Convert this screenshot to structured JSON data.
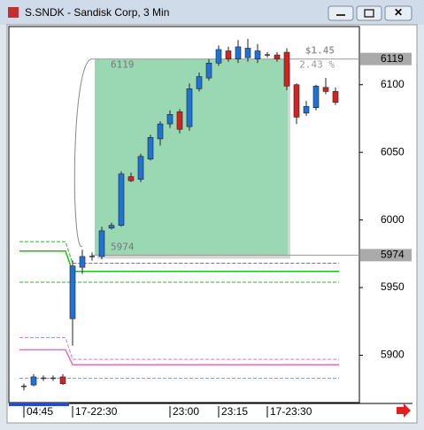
{
  "chart_data": {
    "type": "candlestick",
    "title": "S.SNDK - Sandisk Corp, 3 Min",
    "categories": [
      "04:45",
      null,
      null,
      null,
      null,
      "17-22:30",
      null,
      null,
      null,
      null,
      null,
      null,
      null,
      null,
      null,
      "23:00",
      null,
      null,
      null,
      null,
      "23:15",
      null,
      null,
      null,
      null,
      "17-23:30",
      null,
      null,
      null,
      null,
      null,
      null,
      null
    ],
    "open": [
      5877,
      5878,
      5883,
      5883,
      5884,
      5927,
      5965,
      5973,
      5973,
      5994,
      5996,
      6032,
      6030,
      6045,
      6060,
      6071,
      6080,
      6069,
      6097,
      6105,
      6116,
      6125,
      6119,
      6120,
      6119,
      6122,
      6122,
      6124,
      6100,
      6079,
      6083,
      6098,
      6095
    ],
    "high": [
      5879,
      5886,
      5885,
      5885,
      5886,
      5970,
      5978,
      5976,
      5995,
      5998,
      6036,
      6035,
      6049,
      6063,
      6073,
      6081,
      6082,
      6101,
      6109,
      6119,
      6129,
      6128,
      6133,
      6134,
      6130,
      6124,
      6124,
      6127,
      6101,
      6088,
      6100,
      6105,
      6098
    ],
    "low": [
      5874,
      5877,
      5881,
      5881,
      5878,
      5907,
      5960,
      5970,
      5971,
      5993,
      5995,
      6028,
      6028,
      6044,
      6055,
      6068,
      6064,
      6066,
      6095,
      6103,
      6114,
      6117,
      6116,
      6117,
      6116,
      6120,
      6117,
      6096,
      6071,
      6077,
      6081,
      6093,
      6085
    ],
    "close": [
      5877,
      5884,
      5883,
      5883,
      5879,
      5966,
      5973,
      5973,
      5992,
      5996,
      6034,
      6029,
      6047,
      6061,
      6071,
      6078,
      6067,
      6097,
      6106,
      6116,
      6126,
      6119,
      6128,
      6127,
      6125,
      6122,
      6119,
      6099,
      6076,
      6084,
      6099,
      6095,
      6087
    ],
    "up_color": "#1e73d8",
    "down_color": "#d42222",
    "flat_color": "#333333",
    "ylim": [
      5865,
      6143
    ],
    "yticks": [
      5900,
      5950,
      6000,
      6050,
      6100
    ],
    "levels": [
      {
        "color": "#22bb22",
        "dashed": true,
        "values": [
          5984,
          5968
        ]
      },
      {
        "color": "#22bb22",
        "dashed": false,
        "values": [
          5977,
          5962
        ]
      },
      {
        "color": "#22bb22",
        "dashed": true,
        "values": [
          5954,
          5954
        ]
      },
      {
        "color": "#e070c0",
        "dashed": true,
        "values": [
          5913,
          5897
        ]
      },
      {
        "color": "#e070c0",
        "dashed": false,
        "values": [
          5904,
          5893
        ]
      },
      {
        "color": "#e070c0",
        "dashed": true,
        "values": [
          5883,
          5883
        ]
      }
    ],
    "measure": {
      "high": 6119,
      "low": 5974,
      "change_label": "$1.45",
      "percent_label": "2.43 %",
      "color": "#9ad8b4"
    }
  }
}
